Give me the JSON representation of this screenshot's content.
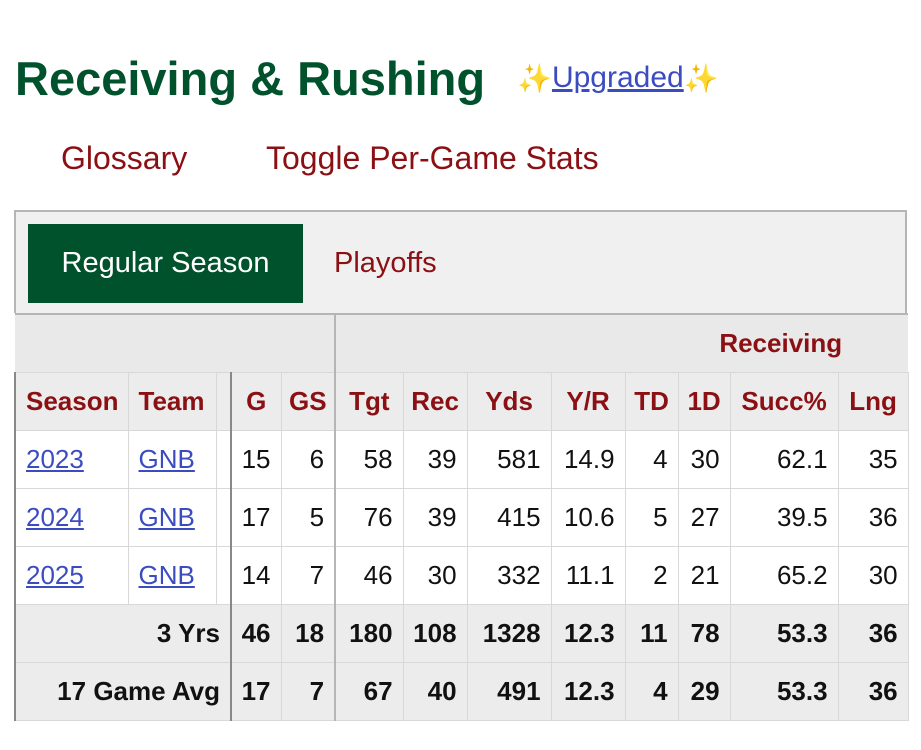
{
  "header": {
    "title": "Receiving & Rushing",
    "spark": "✨",
    "upgraded": "Upgraded"
  },
  "links": {
    "glossary": "Glossary",
    "toggle": "Toggle Per-Game Stats"
  },
  "tabs": {
    "regular": "Regular Season",
    "playoffs": "Playoffs"
  },
  "table": {
    "group_label": "Receiving",
    "columns": [
      "Season",
      "Team",
      "G",
      "GS",
      "Tgt",
      "Rec",
      "Yds",
      "Y/R",
      "TD",
      "1D",
      "Succ%",
      "Lng"
    ],
    "rows": [
      {
        "season": "2023",
        "team": "GNB",
        "g": "15",
        "gs": "6",
        "tgt": "58",
        "rec": "39",
        "yds": "581",
        "yr": "14.9",
        "td": "4",
        "fd": "30",
        "succ": "62.1",
        "lng": "35"
      },
      {
        "season": "2024",
        "team": "GNB",
        "g": "17",
        "gs": "5",
        "tgt": "76",
        "rec": "39",
        "yds": "415",
        "yr": "10.6",
        "td": "5",
        "fd": "27",
        "succ": "39.5",
        "lng": "36"
      },
      {
        "season": "2025",
        "team": "GNB",
        "g": "14",
        "gs": "7",
        "tgt": "46",
        "rec": "30",
        "yds": "332",
        "yr": "11.1",
        "td": "2",
        "fd": "21",
        "succ": "65.2",
        "lng": "30"
      }
    ],
    "totals": [
      {
        "label": "3 Yrs",
        "g": "46",
        "gs": "18",
        "tgt": "180",
        "rec": "108",
        "yds": "1328",
        "yr": "12.3",
        "td": "11",
        "fd": "78",
        "succ": "53.3",
        "lng": "36"
      },
      {
        "label": "17 Game Avg",
        "g": "17",
        "gs": "7",
        "tgt": "67",
        "rec": "40",
        "yds": "491",
        "yr": "12.3",
        "td": "4",
        "fd": "29",
        "succ": "53.3",
        "lng": "36"
      }
    ]
  },
  "colors": {
    "brand_green": "#00522c",
    "link_red": "#8b1014",
    "link_blue": "#3b4cc0"
  }
}
